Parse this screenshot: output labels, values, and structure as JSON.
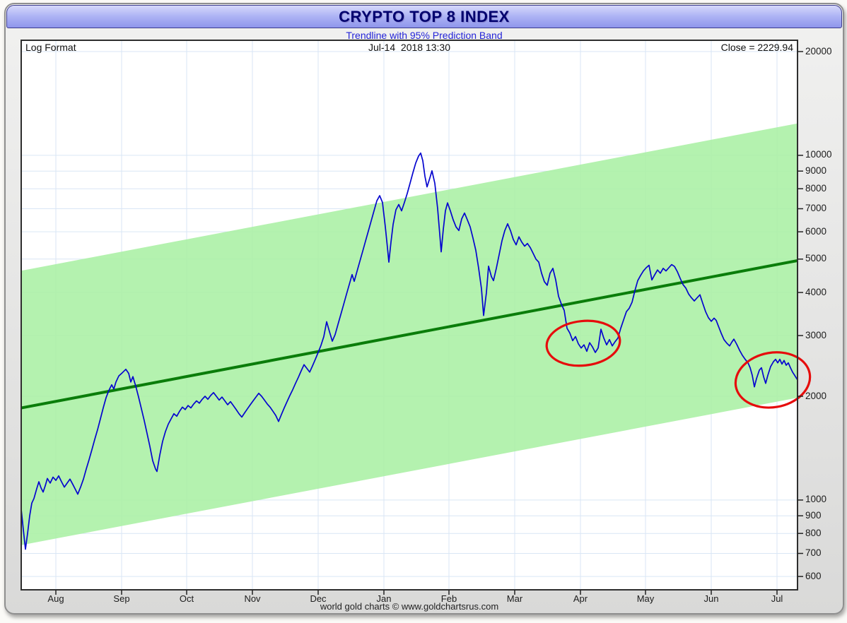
{
  "title": "CRYPTO TOP 8 INDEX",
  "subtitle": "Trendline with 95% Prediction Band",
  "header": {
    "left": "Log Format",
    "center": "Jul-14  2018 13:30",
    "right": "Close = 2229.94"
  },
  "attribution": "world gold charts © www.goldchartsrus.com",
  "colors": {
    "title_text": "#00006e",
    "subtitle_text": "#2424d8",
    "price_line": "#0404cf",
    "trendline": "#0a7d0a",
    "band_fill": "#aaf0a4",
    "annotation": "#e60c0c",
    "gridline": "#d9e6f5"
  },
  "chart_data": {
    "type": "line",
    "title": "CRYPTO TOP 8 INDEX",
    "subtitle": "Trendline with 95% Prediction Band",
    "y_axis": {
      "scale": "log",
      "side": "right",
      "ticks": [
        20000,
        10000,
        9000,
        8000,
        7000,
        6000,
        5000,
        4000,
        3000,
        2000,
        1000,
        900,
        800,
        700,
        600
      ],
      "range_shown": [
        560,
        22000
      ],
      "grid": true
    },
    "x_axis": {
      "start": "mid-Jul-2017",
      "end": "14-Jul-2018",
      "t_domain": [
        0,
        1098
      ],
      "ticks": [
        {
          "label": "Aug",
          "t": 49
        },
        {
          "label": "Sep",
          "t": 142
        },
        {
          "label": "Oct",
          "t": 234
        },
        {
          "label": "Nov",
          "t": 327
        },
        {
          "label": "Dec",
          "t": 420
        },
        {
          "label": "Jan",
          "t": 513
        },
        {
          "label": "Feb",
          "t": 605
        },
        {
          "label": "Mar",
          "t": 698
        },
        {
          "label": "Apr",
          "t": 791
        },
        {
          "label": "May",
          "t": 883
        },
        {
          "label": "Jun",
          "t": 976
        },
        {
          "label": "Jul",
          "t": 1069
        }
      ],
      "grid": true
    },
    "close": 2229.94,
    "trendline": {
      "name": "Trendline",
      "start_value": 1850,
      "end_value": 4950
    },
    "prediction_band": {
      "name": "95% Prediction Band",
      "half_width_factor": 2.5
    },
    "series": [
      {
        "name": "Crypto Top 8 Index",
        "points": [
          [
            0,
            940
          ],
          [
            3,
            820
          ],
          [
            6,
            720
          ],
          [
            9,
            800
          ],
          [
            12,
            900
          ],
          [
            15,
            980
          ],
          [
            18,
            1010
          ],
          [
            22,
            1080
          ],
          [
            25,
            1130
          ],
          [
            28,
            1085
          ],
          [
            31,
            1055
          ],
          [
            34,
            1100
          ],
          [
            37,
            1155
          ],
          [
            41,
            1120
          ],
          [
            45,
            1165
          ],
          [
            49,
            1140
          ],
          [
            53,
            1175
          ],
          [
            57,
            1130
          ],
          [
            61,
            1090
          ],
          [
            65,
            1120
          ],
          [
            69,
            1150
          ],
          [
            73,
            1110
          ],
          [
            77,
            1070
          ],
          [
            80,
            1040
          ],
          [
            84,
            1090
          ],
          [
            88,
            1150
          ],
          [
            92,
            1230
          ],
          [
            96,
            1310
          ],
          [
            100,
            1400
          ],
          [
            104,
            1500
          ],
          [
            108,
            1600
          ],
          [
            112,
            1720
          ],
          [
            116,
            1850
          ],
          [
            120,
            1980
          ],
          [
            124,
            2080
          ],
          [
            128,
            2160
          ],
          [
            131,
            2100
          ],
          [
            134,
            2200
          ],
          [
            138,
            2290
          ],
          [
            143,
            2340
          ],
          [
            148,
            2395
          ],
          [
            152,
            2330
          ],
          [
            155,
            2200
          ],
          [
            158,
            2280
          ],
          [
            162,
            2140
          ],
          [
            166,
            1990
          ],
          [
            170,
            1840
          ],
          [
            174,
            1700
          ],
          [
            178,
            1560
          ],
          [
            182,
            1430
          ],
          [
            186,
            1300
          ],
          [
            190,
            1230
          ],
          [
            192,
            1210
          ],
          [
            196,
            1350
          ],
          [
            200,
            1480
          ],
          [
            204,
            1580
          ],
          [
            208,
            1660
          ],
          [
            212,
            1720
          ],
          [
            216,
            1780
          ],
          [
            220,
            1750
          ],
          [
            224,
            1810
          ],
          [
            228,
            1860
          ],
          [
            232,
            1830
          ],
          [
            236,
            1880
          ],
          [
            240,
            1850
          ],
          [
            244,
            1900
          ],
          [
            248,
            1940
          ],
          [
            252,
            1910
          ],
          [
            256,
            1960
          ],
          [
            260,
            2000
          ],
          [
            264,
            1960
          ],
          [
            268,
            2010
          ],
          [
            272,
            2050
          ],
          [
            276,
            2000
          ],
          [
            280,
            1950
          ],
          [
            284,
            1990
          ],
          [
            288,
            1940
          ],
          [
            292,
            1890
          ],
          [
            296,
            1930
          ],
          [
            300,
            1880
          ],
          [
            304,
            1830
          ],
          [
            308,
            1780
          ],
          [
            312,
            1740
          ],
          [
            316,
            1790
          ],
          [
            320,
            1840
          ],
          [
            324,
            1890
          ],
          [
            328,
            1940
          ],
          [
            332,
            1990
          ],
          [
            336,
            2040
          ],
          [
            340,
            2000
          ],
          [
            344,
            1950
          ],
          [
            348,
            1900
          ],
          [
            352,
            1860
          ],
          [
            356,
            1810
          ],
          [
            360,
            1760
          ],
          [
            364,
            1690
          ],
          [
            368,
            1770
          ],
          [
            372,
            1850
          ],
          [
            376,
            1930
          ],
          [
            380,
            2010
          ],
          [
            384,
            2090
          ],
          [
            388,
            2180
          ],
          [
            392,
            2270
          ],
          [
            396,
            2370
          ],
          [
            400,
            2470
          ],
          [
            404,
            2410
          ],
          [
            408,
            2350
          ],
          [
            412,
            2450
          ],
          [
            416,
            2560
          ],
          [
            420,
            2680
          ],
          [
            424,
            2810
          ],
          [
            428,
            2980
          ],
          [
            432,
            3290
          ],
          [
            436,
            3080
          ],
          [
            440,
            2890
          ],
          [
            444,
            3020
          ],
          [
            448,
            3230
          ],
          [
            452,
            3450
          ],
          [
            456,
            3690
          ],
          [
            460,
            3950
          ],
          [
            464,
            4220
          ],
          [
            468,
            4510
          ],
          [
            471,
            4310
          ],
          [
            475,
            4610
          ],
          [
            479,
            4930
          ],
          [
            483,
            5270
          ],
          [
            487,
            5640
          ],
          [
            491,
            6030
          ],
          [
            495,
            6450
          ],
          [
            499,
            6900
          ],
          [
            503,
            7380
          ],
          [
            507,
            7640
          ],
          [
            511,
            7300
          ],
          [
            515,
            6200
          ],
          [
            518,
            5400
          ],
          [
            520,
            4900
          ],
          [
            523,
            5600
          ],
          [
            526,
            6300
          ],
          [
            530,
            6950
          ],
          [
            534,
            7200
          ],
          [
            538,
            6900
          ],
          [
            542,
            7300
          ],
          [
            546,
            7750
          ],
          [
            550,
            8300
          ],
          [
            554,
            8900
          ],
          [
            558,
            9500
          ],
          [
            562,
            9950
          ],
          [
            565,
            10150
          ],
          [
            568,
            9650
          ],
          [
            571,
            8700
          ],
          [
            574,
            8100
          ],
          [
            578,
            8600
          ],
          [
            581,
            9020
          ],
          [
            585,
            8300
          ],
          [
            589,
            7000
          ],
          [
            592,
            5900
          ],
          [
            594,
            5250
          ],
          [
            597,
            6100
          ],
          [
            600,
            6900
          ],
          [
            603,
            7280
          ],
          [
            607,
            6900
          ],
          [
            611,
            6500
          ],
          [
            615,
            6200
          ],
          [
            619,
            6050
          ],
          [
            623,
            6540
          ],
          [
            627,
            6800
          ],
          [
            631,
            6500
          ],
          [
            635,
            6200
          ],
          [
            639,
            5750
          ],
          [
            643,
            5300
          ],
          [
            647,
            4700
          ],
          [
            651,
            4100
          ],
          [
            654,
            3430
          ],
          [
            658,
            4000
          ],
          [
            661,
            4770
          ],
          [
            665,
            4450
          ],
          [
            668,
            4330
          ],
          [
            672,
            4700
          ],
          [
            676,
            5150
          ],
          [
            680,
            5650
          ],
          [
            684,
            6050
          ],
          [
            688,
            6330
          ],
          [
            692,
            6050
          ],
          [
            696,
            5700
          ],
          [
            700,
            5500
          ],
          [
            704,
            5800
          ],
          [
            708,
            5600
          ],
          [
            712,
            5450
          ],
          [
            716,
            5550
          ],
          [
            720,
            5400
          ],
          [
            724,
            5200
          ],
          [
            728,
            5000
          ],
          [
            732,
            4900
          ],
          [
            736,
            4550
          ],
          [
            740,
            4300
          ],
          [
            744,
            4200
          ],
          [
            748,
            4550
          ],
          [
            752,
            4700
          ],
          [
            756,
            4350
          ],
          [
            760,
            3900
          ],
          [
            764,
            3700
          ],
          [
            768,
            3550
          ],
          [
            772,
            3150
          ],
          [
            776,
            3050
          ],
          [
            780,
            2900
          ],
          [
            784,
            2980
          ],
          [
            788,
            2840
          ],
          [
            792,
            2760
          ],
          [
            796,
            2820
          ],
          [
            800,
            2700
          ],
          [
            804,
            2860
          ],
          [
            808,
            2780
          ],
          [
            812,
            2680
          ],
          [
            816,
            2760
          ],
          [
            820,
            3130
          ],
          [
            824,
            2950
          ],
          [
            828,
            2820
          ],
          [
            832,
            2920
          ],
          [
            836,
            2800
          ],
          [
            840,
            2880
          ],
          [
            844,
            2950
          ],
          [
            848,
            3150
          ],
          [
            852,
            3330
          ],
          [
            856,
            3520
          ],
          [
            860,
            3600
          ],
          [
            864,
            3750
          ],
          [
            868,
            4050
          ],
          [
            872,
            4330
          ],
          [
            876,
            4480
          ],
          [
            880,
            4620
          ],
          [
            884,
            4720
          ],
          [
            888,
            4800
          ],
          [
            892,
            4350
          ],
          [
            896,
            4500
          ],
          [
            900,
            4650
          ],
          [
            904,
            4550
          ],
          [
            908,
            4700
          ],
          [
            912,
            4620
          ],
          [
            916,
            4720
          ],
          [
            920,
            4820
          ],
          [
            924,
            4760
          ],
          [
            928,
            4600
          ],
          [
            932,
            4400
          ],
          [
            936,
            4220
          ],
          [
            940,
            4120
          ],
          [
            944,
            3960
          ],
          [
            948,
            3860
          ],
          [
            952,
            3780
          ],
          [
            956,
            3860
          ],
          [
            960,
            3940
          ],
          [
            964,
            3720
          ],
          [
            968,
            3520
          ],
          [
            972,
            3380
          ],
          [
            976,
            3300
          ],
          [
            980,
            3370
          ],
          [
            983,
            3320
          ],
          [
            986,
            3200
          ],
          [
            990,
            3050
          ],
          [
            994,
            2920
          ],
          [
            998,
            2850
          ],
          [
            1002,
            2800
          ],
          [
            1005,
            2870
          ],
          [
            1008,
            2930
          ],
          [
            1012,
            2830
          ],
          [
            1016,
            2720
          ],
          [
            1020,
            2630
          ],
          [
            1024,
            2560
          ],
          [
            1028,
            2500
          ],
          [
            1031,
            2420
          ],
          [
            1034,
            2300
          ],
          [
            1037,
            2130
          ],
          [
            1040,
            2250
          ],
          [
            1044,
            2380
          ],
          [
            1047,
            2420
          ],
          [
            1050,
            2280
          ],
          [
            1053,
            2180
          ],
          [
            1056,
            2300
          ],
          [
            1060,
            2440
          ],
          [
            1064,
            2520
          ],
          [
            1067,
            2560
          ],
          [
            1070,
            2500
          ],
          [
            1073,
            2560
          ],
          [
            1076,
            2480
          ],
          [
            1079,
            2540
          ],
          [
            1082,
            2460
          ],
          [
            1085,
            2500
          ],
          [
            1088,
            2420
          ],
          [
            1091,
            2350
          ],
          [
            1094,
            2300
          ],
          [
            1098,
            2230
          ]
        ]
      }
    ],
    "annotations": [
      {
        "type": "ellipse",
        "label": "hand-drawn circle around Apr lows",
        "t": 795,
        "value": 2850,
        "rx_t": 52,
        "ry_log_factor": 1.16,
        "rotate_deg": -6
      },
      {
        "type": "ellipse",
        "label": "hand-drawn circle around Jul lows",
        "t": 1063,
        "value": 2230,
        "rx_t": 53,
        "ry_log_factor": 1.2,
        "rotate_deg": -10
      }
    ]
  }
}
